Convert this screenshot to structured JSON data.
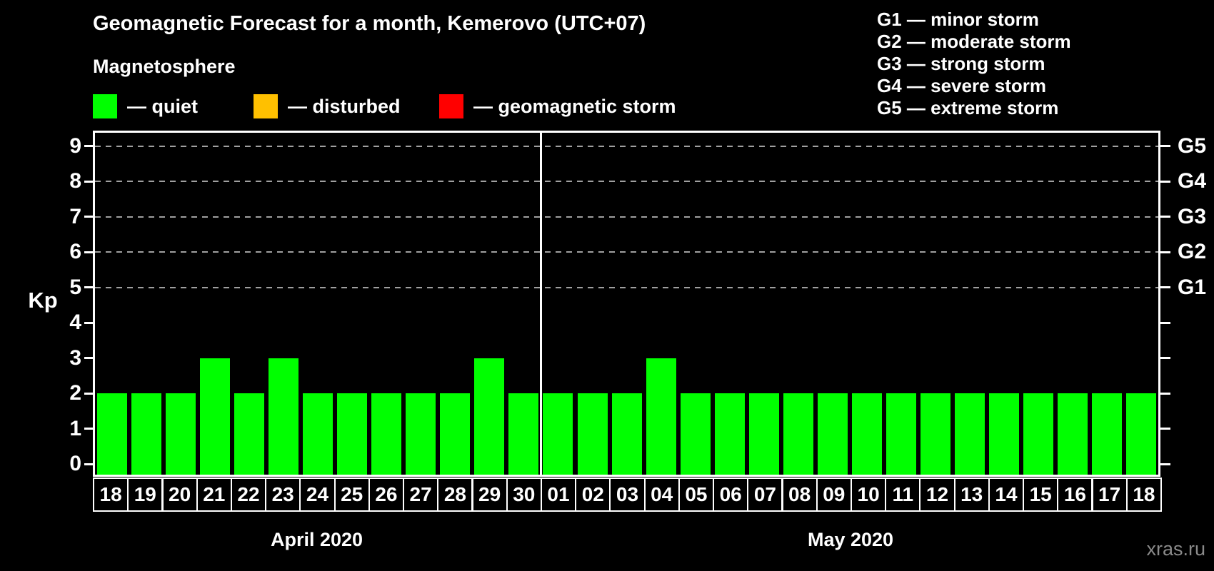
{
  "title": "Geomagnetic Forecast for a month, Kemerovo (UTC+07)",
  "subtitle": "Magnetosphere",
  "legend": {
    "items": [
      {
        "label": "— quiet",
        "color": "#00ff00"
      },
      {
        "label": "— disturbed",
        "color": "#ffc000"
      },
      {
        "label": "— geomagnetic storm",
        "color": "#ff0000"
      }
    ]
  },
  "storm_scale_legend": {
    "items": [
      "G1 — minor storm",
      "G2 — moderate storm",
      "G3 — strong storm",
      "G4 — severe storm",
      "G5 — extreme storm"
    ]
  },
  "watermark": "xras.ru",
  "colors": {
    "background": "#000000",
    "axis": "#ffffff",
    "grid": "#a0a0a0",
    "quiet": "#00ff00",
    "disturbed": "#ffc000",
    "storm": "#ff0000"
  },
  "chart_data": {
    "type": "bar",
    "title": "Geomagnetic Forecast for a month, Kemerovo (UTC+07)",
    "ylabel": "Kp",
    "ylim": [
      0,
      9
    ],
    "yticks": [
      0,
      1,
      2,
      3,
      4,
      5,
      6,
      7,
      8,
      9
    ],
    "gridlines_at_kp": [
      5,
      6,
      7,
      8,
      9
    ],
    "right_axis_labels": [
      {
        "label": "G1",
        "kp": 5
      },
      {
        "label": "G2",
        "kp": 6
      },
      {
        "label": "G3",
        "kp": 7
      },
      {
        "label": "G4",
        "kp": 8
      },
      {
        "label": "G5",
        "kp": 9
      }
    ],
    "bar_color": "#00ff00",
    "bar_status": "quiet",
    "groups": [
      {
        "month_label": "April 2020",
        "days": [
          "18",
          "19",
          "20",
          "21",
          "22",
          "23",
          "24",
          "25",
          "26",
          "27",
          "28",
          "29",
          "30"
        ],
        "values": [
          2,
          2,
          2,
          3,
          2,
          3,
          2,
          2,
          2,
          2,
          2,
          3,
          2
        ]
      },
      {
        "month_label": "May 2020",
        "days": [
          "01",
          "02",
          "03",
          "04",
          "05",
          "06",
          "07",
          "08",
          "09",
          "10",
          "11",
          "12",
          "13",
          "14",
          "15",
          "16",
          "17",
          "18"
        ],
        "values": [
          2,
          2,
          2,
          3,
          2,
          2,
          2,
          2,
          2,
          2,
          2,
          2,
          2,
          2,
          2,
          2,
          2,
          2
        ]
      }
    ]
  }
}
